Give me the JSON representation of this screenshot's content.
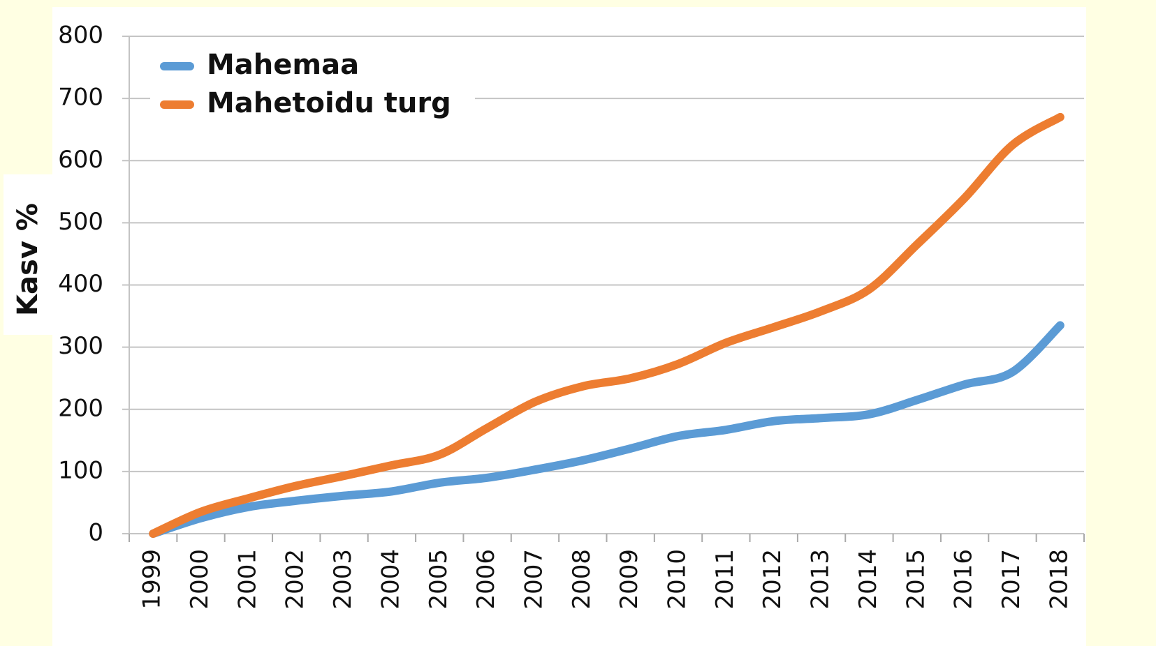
{
  "chart_data": {
    "type": "line",
    "y_label": "Kasv %",
    "categories": [
      "1999",
      "2000",
      "2001",
      "2002",
      "2003",
      "2004",
      "2005",
      "2006",
      "2007",
      "2008",
      "2009",
      "2010",
      "2011",
      "2012",
      "2013",
      "2014",
      "2015",
      "2016",
      "2017",
      "2018"
    ],
    "series": [
      {
        "name": "Mahemaa",
        "color": "#5b9bd5",
        "values": [
          0,
          25,
          43,
          53,
          61,
          68,
          82,
          90,
          103,
          118,
          137,
          157,
          167,
          181,
          186,
          192,
          215,
          240,
          260,
          335
        ]
      },
      {
        "name": "Mahetoidu turg",
        "color": "#ed7d31",
        "values": [
          0,
          35,
          57,
          77,
          93,
          110,
          127,
          170,
          212,
          237,
          250,
          273,
          307,
          332,
          358,
          393,
          465,
          540,
          625,
          670
        ]
      }
    ],
    "ylim": [
      0,
      800
    ],
    "yticks": [
      0,
      100,
      200,
      300,
      400,
      500,
      600,
      700,
      800
    ],
    "grid": true,
    "legend": "top-left"
  }
}
